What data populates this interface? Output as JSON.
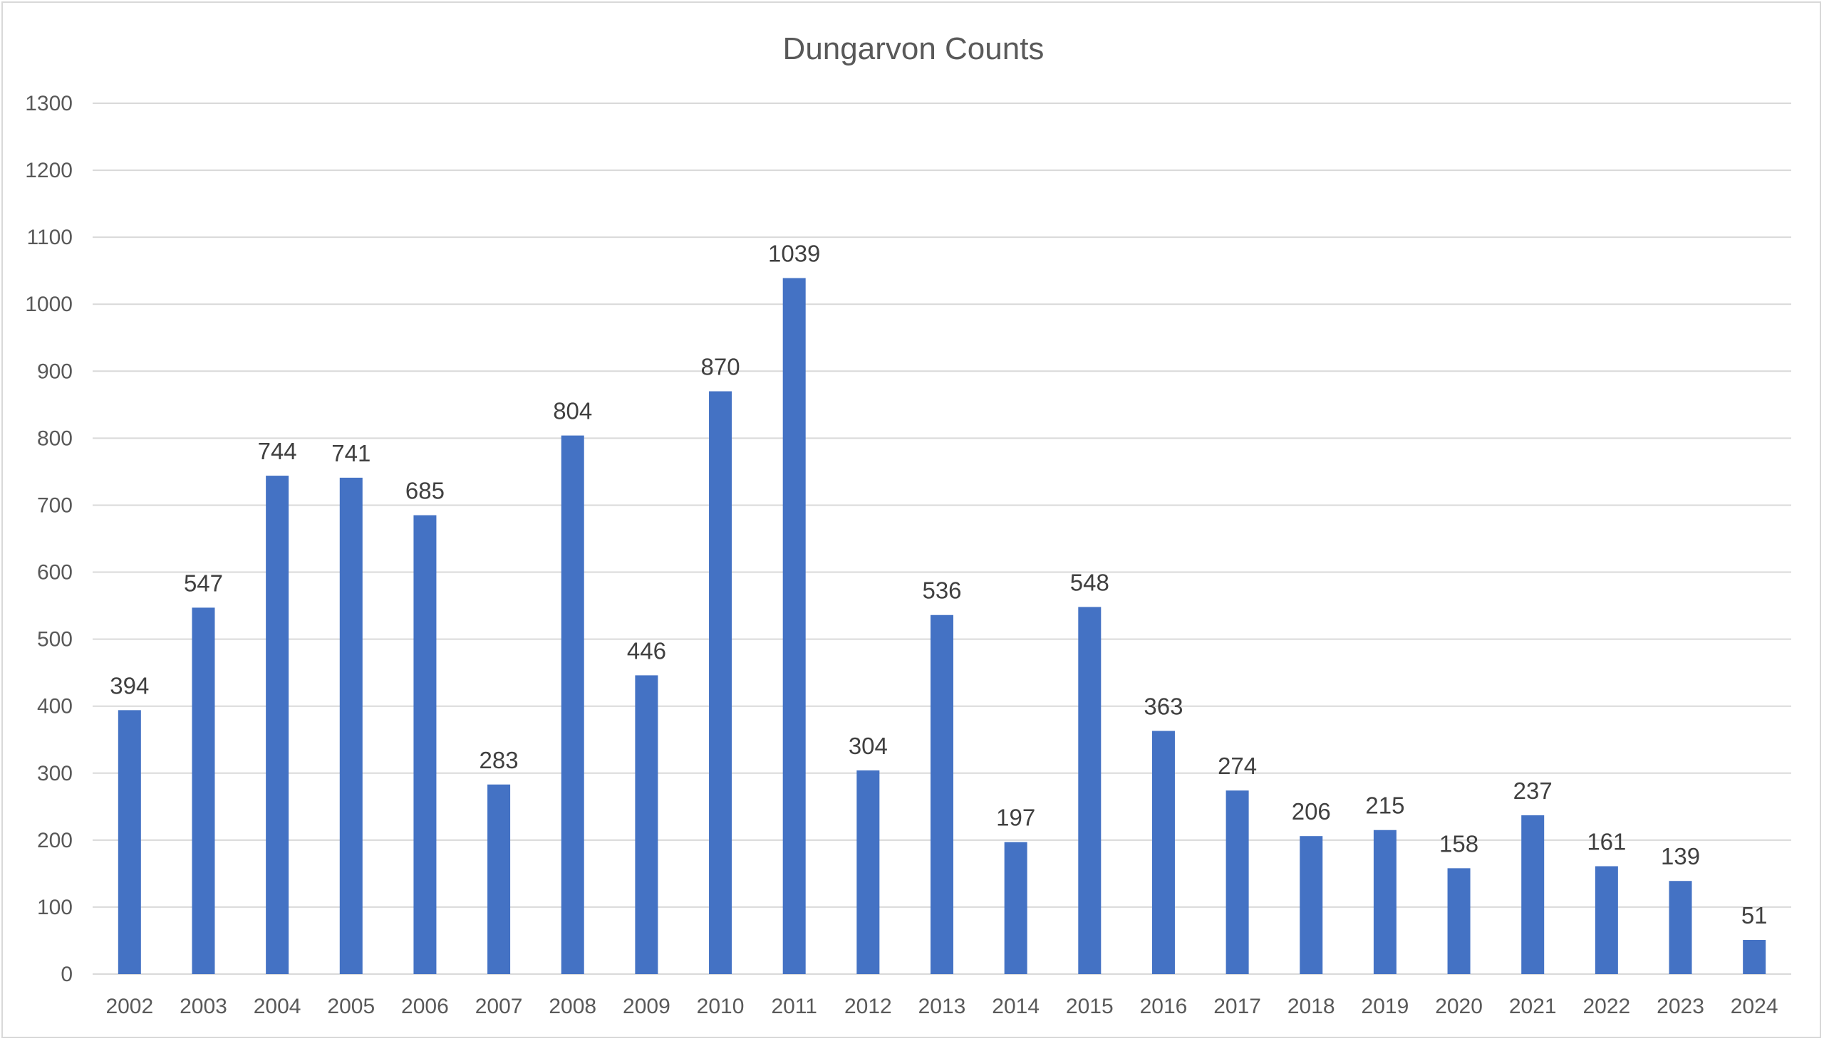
{
  "chart_data": {
    "type": "bar",
    "title": "Dungarvon Counts",
    "xlabel": "",
    "ylabel": "",
    "categories": [
      "2002",
      "2003",
      "2004",
      "2005",
      "2006",
      "2007",
      "2008",
      "2009",
      "2010",
      "2011",
      "2012",
      "2013",
      "2014",
      "2015",
      "2016",
      "2017",
      "2018",
      "2019",
      "2020",
      "2021",
      "2022",
      "2023",
      "2024"
    ],
    "series": [
      {
        "values": [
          394,
          547,
          744,
          741,
          685,
          283,
          804,
          446,
          870,
          1039,
          304,
          536,
          197,
          548,
          363,
          274,
          206,
          215,
          158,
          237,
          161,
          139,
          51
        ]
      }
    ],
    "ylim": [
      0,
      1300
    ],
    "yticks": [
      0,
      100,
      200,
      300,
      400,
      500,
      600,
      700,
      800,
      900,
      1000,
      1100,
      1200,
      1300
    ],
    "grid": true,
    "legend": "none",
    "data_labels": true,
    "bar_color": "#4472c4"
  }
}
